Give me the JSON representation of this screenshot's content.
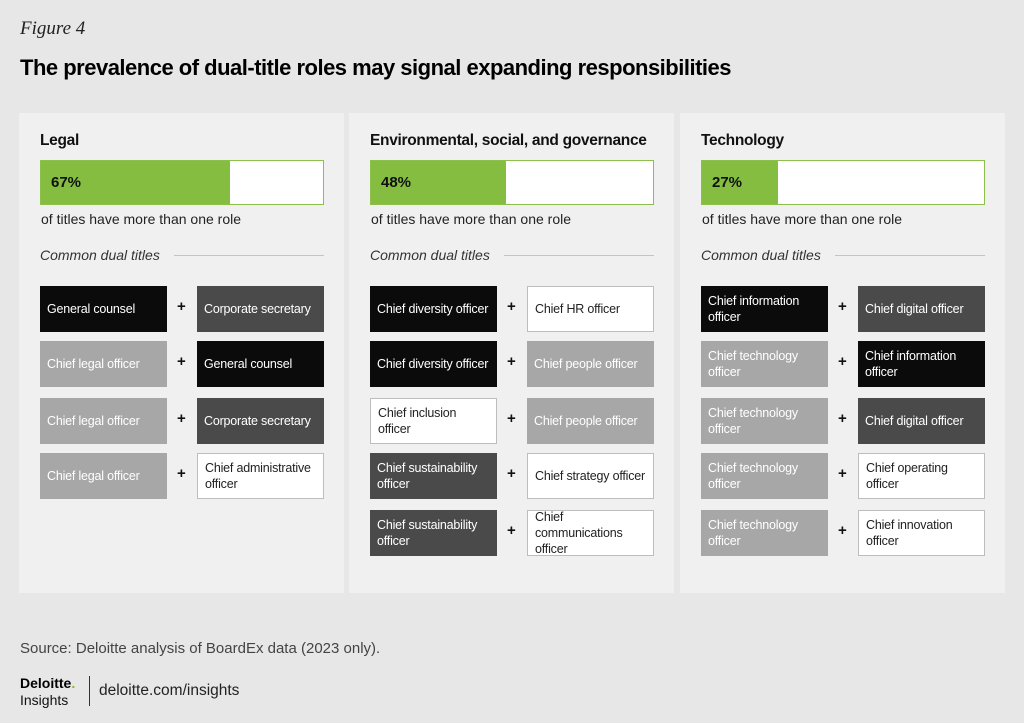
{
  "figure_label": "Figure 4",
  "title": "The prevalence of dual-title roles may signal expanding responsibilities",
  "accent_color": "#84bd3f",
  "panels": [
    {
      "heading": "Legal",
      "percent_label": "67%",
      "percent": 67,
      "subtitle": "of titles have more than one role",
      "section_label": "Common dual titles",
      "pairs": [
        {
          "left": "General counsel",
          "left_style": "black",
          "right": "Corporate secretary",
          "right_style": "dark"
        },
        {
          "left": "Chief legal officer",
          "left_style": "mid",
          "right": "General counsel",
          "right_style": "black"
        },
        {
          "left": "Chief legal officer",
          "left_style": "mid",
          "right": "Corporate secretary",
          "right_style": "dark"
        },
        {
          "left": "Chief legal officer",
          "left_style": "mid",
          "right": "Chief administrative officer",
          "right_style": "white"
        }
      ]
    },
    {
      "heading": "Environmental, social, and governance",
      "percent_label": "48%",
      "percent": 48,
      "subtitle": "of titles have more than one role",
      "section_label": "Common dual titles",
      "pairs": [
        {
          "left": "Chief diversity officer",
          "left_style": "black",
          "right": "Chief HR officer",
          "right_style": "white"
        },
        {
          "left": "Chief diversity officer",
          "left_style": "black",
          "right": "Chief people officer",
          "right_style": "mid"
        },
        {
          "left": "Chief inclusion officer",
          "left_style": "white",
          "right": "Chief people officer",
          "right_style": "mid"
        },
        {
          "left": "Chief sustainability officer",
          "left_style": "dark",
          "right": "Chief strategy officer",
          "right_style": "white"
        },
        {
          "left": "Chief sustainability officer",
          "left_style": "dark",
          "right": "Chief communications officer",
          "right_style": "white"
        }
      ]
    },
    {
      "heading": "Technology",
      "percent_label": "27%",
      "percent": 27,
      "subtitle": "of titles have more than one role",
      "section_label": "Common dual titles",
      "pairs": [
        {
          "left": "Chief information officer",
          "left_style": "black",
          "right": "Chief digital officer",
          "right_style": "dark"
        },
        {
          "left": "Chief technology officer",
          "left_style": "mid",
          "right": "Chief information officer",
          "right_style": "black"
        },
        {
          "left": "Chief technology officer",
          "left_style": "mid",
          "right": "Chief digital officer",
          "right_style": "dark"
        },
        {
          "left": "Chief technology officer",
          "left_style": "mid",
          "right": "Chief operating officer",
          "right_style": "white"
        },
        {
          "left": "Chief technology officer",
          "left_style": "mid",
          "right": "Chief innovation officer",
          "right_style": "white"
        }
      ]
    }
  ],
  "plus_sign": "+",
  "source": "Source: Deloitte analysis of BoardEx data (2023 only).",
  "logo": {
    "brand": "Deloitte",
    "dot": ".",
    "sub": "Insights"
  },
  "url": "deloitte.com/insights"
}
